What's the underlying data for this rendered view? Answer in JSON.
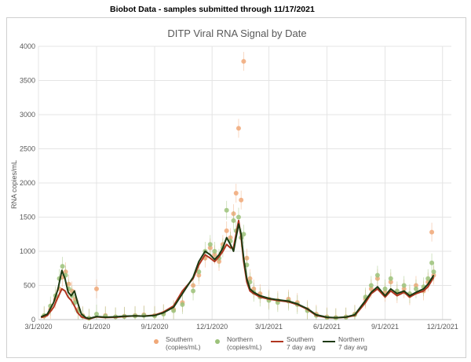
{
  "header": {
    "note": "Biobot Data - samples submitted through 11/17/2021"
  },
  "colors": {
    "southern_points": "#f0a878",
    "northern_points": "#9cc27a",
    "southern_avg": "#b0351f",
    "northern_avg": "#1e3a12",
    "grid": "#e4e4e4",
    "axis_text": "#595959"
  },
  "chart_data": {
    "type": "scatter",
    "title": "DITP Viral RNA Signal by Date",
    "xlabel": "",
    "ylabel": "RNA copies/mL",
    "ylim": [
      0,
      4000
    ],
    "xlim": [
      "2020-03-01",
      "2021-12-15"
    ],
    "yticks": [
      "0",
      "500",
      "1000",
      "1500",
      "2000",
      "2500",
      "3000",
      "3500",
      "4000"
    ],
    "xticks": [
      "3/1/2020",
      "6/1/2020",
      "9/1/2020",
      "12/1/2020",
      "3/1/2021",
      "6/1/2021",
      "9/1/2021",
      "12/1/2021"
    ],
    "grid": true,
    "legend_position": "bottom",
    "series": [
      {
        "name": "Southern (copies/mL)",
        "legend_lines": [
          "Southern",
          "(copies/mL)"
        ],
        "style": "points",
        "x": [
          "2020-03-10",
          "2020-03-20",
          "2020-03-28",
          "2020-04-03",
          "2020-04-08",
          "2020-04-13",
          "2020-04-18",
          "2020-04-23",
          "2020-04-28",
          "2020-05-03",
          "2020-05-10",
          "2020-05-20",
          "2020-06-01",
          "2020-06-15",
          "2020-07-01",
          "2020-07-15",
          "2020-08-01",
          "2020-08-15",
          "2020-09-01",
          "2020-09-15",
          "2020-10-01",
          "2020-10-15",
          "2020-11-01",
          "2020-11-10",
          "2020-11-20",
          "2020-11-28",
          "2020-12-05",
          "2020-12-12",
          "2020-12-18",
          "2020-12-24",
          "2020-12-30",
          "2021-01-04",
          "2021-01-08",
          "2021-01-12",
          "2021-01-16",
          "2021-01-20",
          "2021-01-25",
          "2021-01-30",
          "2021-02-05",
          "2021-02-15",
          "2021-03-01",
          "2021-03-15",
          "2021-04-01",
          "2021-04-15",
          "2021-05-01",
          "2021-05-15",
          "2021-06-01",
          "2021-06-15",
          "2021-07-01",
          "2021-07-15",
          "2021-08-01",
          "2021-08-10",
          "2021-08-20",
          "2021-09-01",
          "2021-09-10",
          "2021-09-20",
          "2021-10-01",
          "2021-10-10",
          "2021-10-20",
          "2021-11-01",
          "2021-11-08",
          "2021-11-14",
          "2021-11-17"
        ],
        "values": [
          50,
          150,
          300,
          450,
          620,
          700,
          520,
          420,
          300,
          150,
          60,
          20,
          450,
          60,
          40,
          50,
          60,
          70,
          60,
          90,
          150,
          250,
          500,
          650,
          900,
          1050,
          950,
          850,
          1100,
          1300,
          1200,
          1550,
          1850,
          2800,
          1750,
          3780,
          900,
          600,
          450,
          380,
          300,
          280,
          300,
          250,
          150,
          80,
          40,
          30,
          40,
          80,
          300,
          450,
          600,
          400,
          550,
          380,
          450,
          350,
          500,
          420,
          550,
          1280,
          650
        ]
      },
      {
        "name": "Northern (copies/mL)",
        "legend_lines": [
          "Northern",
          "(copies/mL)"
        ],
        "style": "points",
        "x": [
          "2020-03-10",
          "2020-03-20",
          "2020-03-28",
          "2020-04-03",
          "2020-04-08",
          "2020-04-13",
          "2020-04-18",
          "2020-04-23",
          "2020-04-28",
          "2020-05-03",
          "2020-05-10",
          "2020-05-20",
          "2020-06-01",
          "2020-06-15",
          "2020-07-01",
          "2020-07-15",
          "2020-08-01",
          "2020-08-15",
          "2020-09-01",
          "2020-09-15",
          "2020-10-01",
          "2020-10-15",
          "2020-11-01",
          "2020-11-10",
          "2020-11-20",
          "2020-11-28",
          "2020-12-05",
          "2020-12-12",
          "2020-12-18",
          "2020-12-24",
          "2020-12-30",
          "2021-01-04",
          "2021-01-08",
          "2021-01-12",
          "2021-01-16",
          "2021-01-20",
          "2021-01-25",
          "2021-01-30",
          "2021-02-05",
          "2021-02-15",
          "2021-03-01",
          "2021-03-15",
          "2021-04-01",
          "2021-04-15",
          "2021-05-01",
          "2021-05-15",
          "2021-06-01",
          "2021-06-15",
          "2021-07-01",
          "2021-07-15",
          "2021-08-01",
          "2021-08-10",
          "2021-08-20",
          "2021-09-01",
          "2021-09-10",
          "2021-09-20",
          "2021-10-01",
          "2021-10-10",
          "2021-10-20",
          "2021-11-01",
          "2021-11-08",
          "2021-11-14",
          "2021-11-17"
        ],
        "values": [
          60,
          200,
          350,
          600,
          780,
          650,
          450,
          350,
          250,
          120,
          50,
          20,
          80,
          50,
          40,
          45,
          55,
          60,
          55,
          80,
          130,
          220,
          420,
          700,
          1000,
          1100,
          1000,
          900,
          1050,
          1600,
          1150,
          1450,
          1300,
          1500,
          1200,
          1250,
          800,
          550,
          400,
          330,
          280,
          250,
          270,
          220,
          130,
          60,
          30,
          25,
          35,
          70,
          330,
          500,
          650,
          450,
          600,
          420,
          500,
          380,
          450,
          480,
          600,
          830,
          700
        ]
      },
      {
        "name": "Southern 7 day avg",
        "legend_lines": [
          "Southern",
          "7 day avg"
        ],
        "style": "line",
        "x": [
          "2020-03-05",
          "2020-03-15",
          "2020-03-25",
          "2020-04-01",
          "2020-04-07",
          "2020-04-12",
          "2020-04-17",
          "2020-04-22",
          "2020-04-27",
          "2020-05-02",
          "2020-05-08",
          "2020-05-15",
          "2020-05-20",
          "2020-06-01",
          "2020-06-15",
          "2020-07-01",
          "2020-07-15",
          "2020-08-01",
          "2020-08-15",
          "2020-09-01",
          "2020-09-15",
          "2020-10-01",
          "2020-10-15",
          "2020-11-01",
          "2020-11-10",
          "2020-11-20",
          "2020-11-28",
          "2020-12-05",
          "2020-12-12",
          "2020-12-18",
          "2020-12-24",
          "2020-12-30",
          "2021-01-04",
          "2021-01-08",
          "2021-01-12",
          "2021-01-16",
          "2021-01-20",
          "2021-01-25",
          "2021-01-30",
          "2021-02-05",
          "2021-02-15",
          "2021-03-01",
          "2021-03-15",
          "2021-04-01",
          "2021-04-15",
          "2021-05-01",
          "2021-05-15",
          "2021-06-01",
          "2021-06-15",
          "2021-07-01",
          "2021-07-15",
          "2021-08-01",
          "2021-08-10",
          "2021-08-20",
          "2021-09-01",
          "2021-09-10",
          "2021-09-20",
          "2021-10-01",
          "2021-10-10",
          "2021-10-20",
          "2021-11-01",
          "2021-11-08",
          "2021-11-17"
        ],
        "values": [
          30,
          60,
          180,
          330,
          450,
          420,
          330,
          280,
          200,
          100,
          40,
          20,
          10,
          40,
          30,
          35,
          45,
          55,
          50,
          65,
          110,
          200,
          420,
          600,
          800,
          950,
          900,
          850,
          920,
          1000,
          1100,
          1050,
          1050,
          1250,
          1450,
          1200,
          850,
          550,
          420,
          380,
          330,
          300,
          280,
          260,
          220,
          150,
          60,
          30,
          25,
          35,
          60,
          250,
          380,
          450,
          330,
          420,
          350,
          400,
          330,
          380,
          420,
          480,
          620
        ]
      },
      {
        "name": "Northern 7 day avg",
        "legend_lines": [
          "Northern",
          "7 day avg"
        ],
        "style": "line",
        "x": [
          "2020-03-05",
          "2020-03-15",
          "2020-03-25",
          "2020-04-01",
          "2020-04-07",
          "2020-04-12",
          "2020-04-17",
          "2020-04-22",
          "2020-04-27",
          "2020-05-02",
          "2020-05-08",
          "2020-05-15",
          "2020-05-20",
          "2020-06-01",
          "2020-06-15",
          "2020-07-01",
          "2020-07-15",
          "2020-08-01",
          "2020-08-15",
          "2020-09-01",
          "2020-09-15",
          "2020-10-01",
          "2020-10-15",
          "2020-11-01",
          "2020-11-10",
          "2020-11-20",
          "2020-11-28",
          "2020-12-05",
          "2020-12-12",
          "2020-12-18",
          "2020-12-24",
          "2020-12-30",
          "2021-01-04",
          "2021-01-08",
          "2021-01-12",
          "2021-01-16",
          "2021-01-20",
          "2021-01-25",
          "2021-01-30",
          "2021-02-05",
          "2021-02-15",
          "2021-03-01",
          "2021-03-15",
          "2021-04-01",
          "2021-04-15",
          "2021-05-01",
          "2021-05-15",
          "2021-06-01",
          "2021-06-15",
          "2021-07-01",
          "2021-07-15",
          "2021-08-01",
          "2021-08-10",
          "2021-08-20",
          "2021-09-01",
          "2021-09-10",
          "2021-09-20",
          "2021-10-01",
          "2021-10-10",
          "2021-10-20",
          "2021-11-01",
          "2021-11-08",
          "2021-11-17"
        ],
        "values": [
          40,
          80,
          250,
          450,
          720,
          600,
          400,
          350,
          420,
          250,
          80,
          30,
          15,
          45,
          35,
          40,
          50,
          55,
          50,
          60,
          100,
          180,
          380,
          620,
          850,
          1000,
          950,
          880,
          950,
          1050,
          1200,
          1100,
          1000,
          1200,
          1400,
          1250,
          900,
          600,
          450,
          400,
          350,
          310,
          290,
          270,
          230,
          160,
          70,
          35,
          28,
          38,
          70,
          280,
          400,
          480,
          350,
          450,
          380,
          420,
          350,
          400,
          450,
          520,
          650
        ]
      }
    ]
  }
}
